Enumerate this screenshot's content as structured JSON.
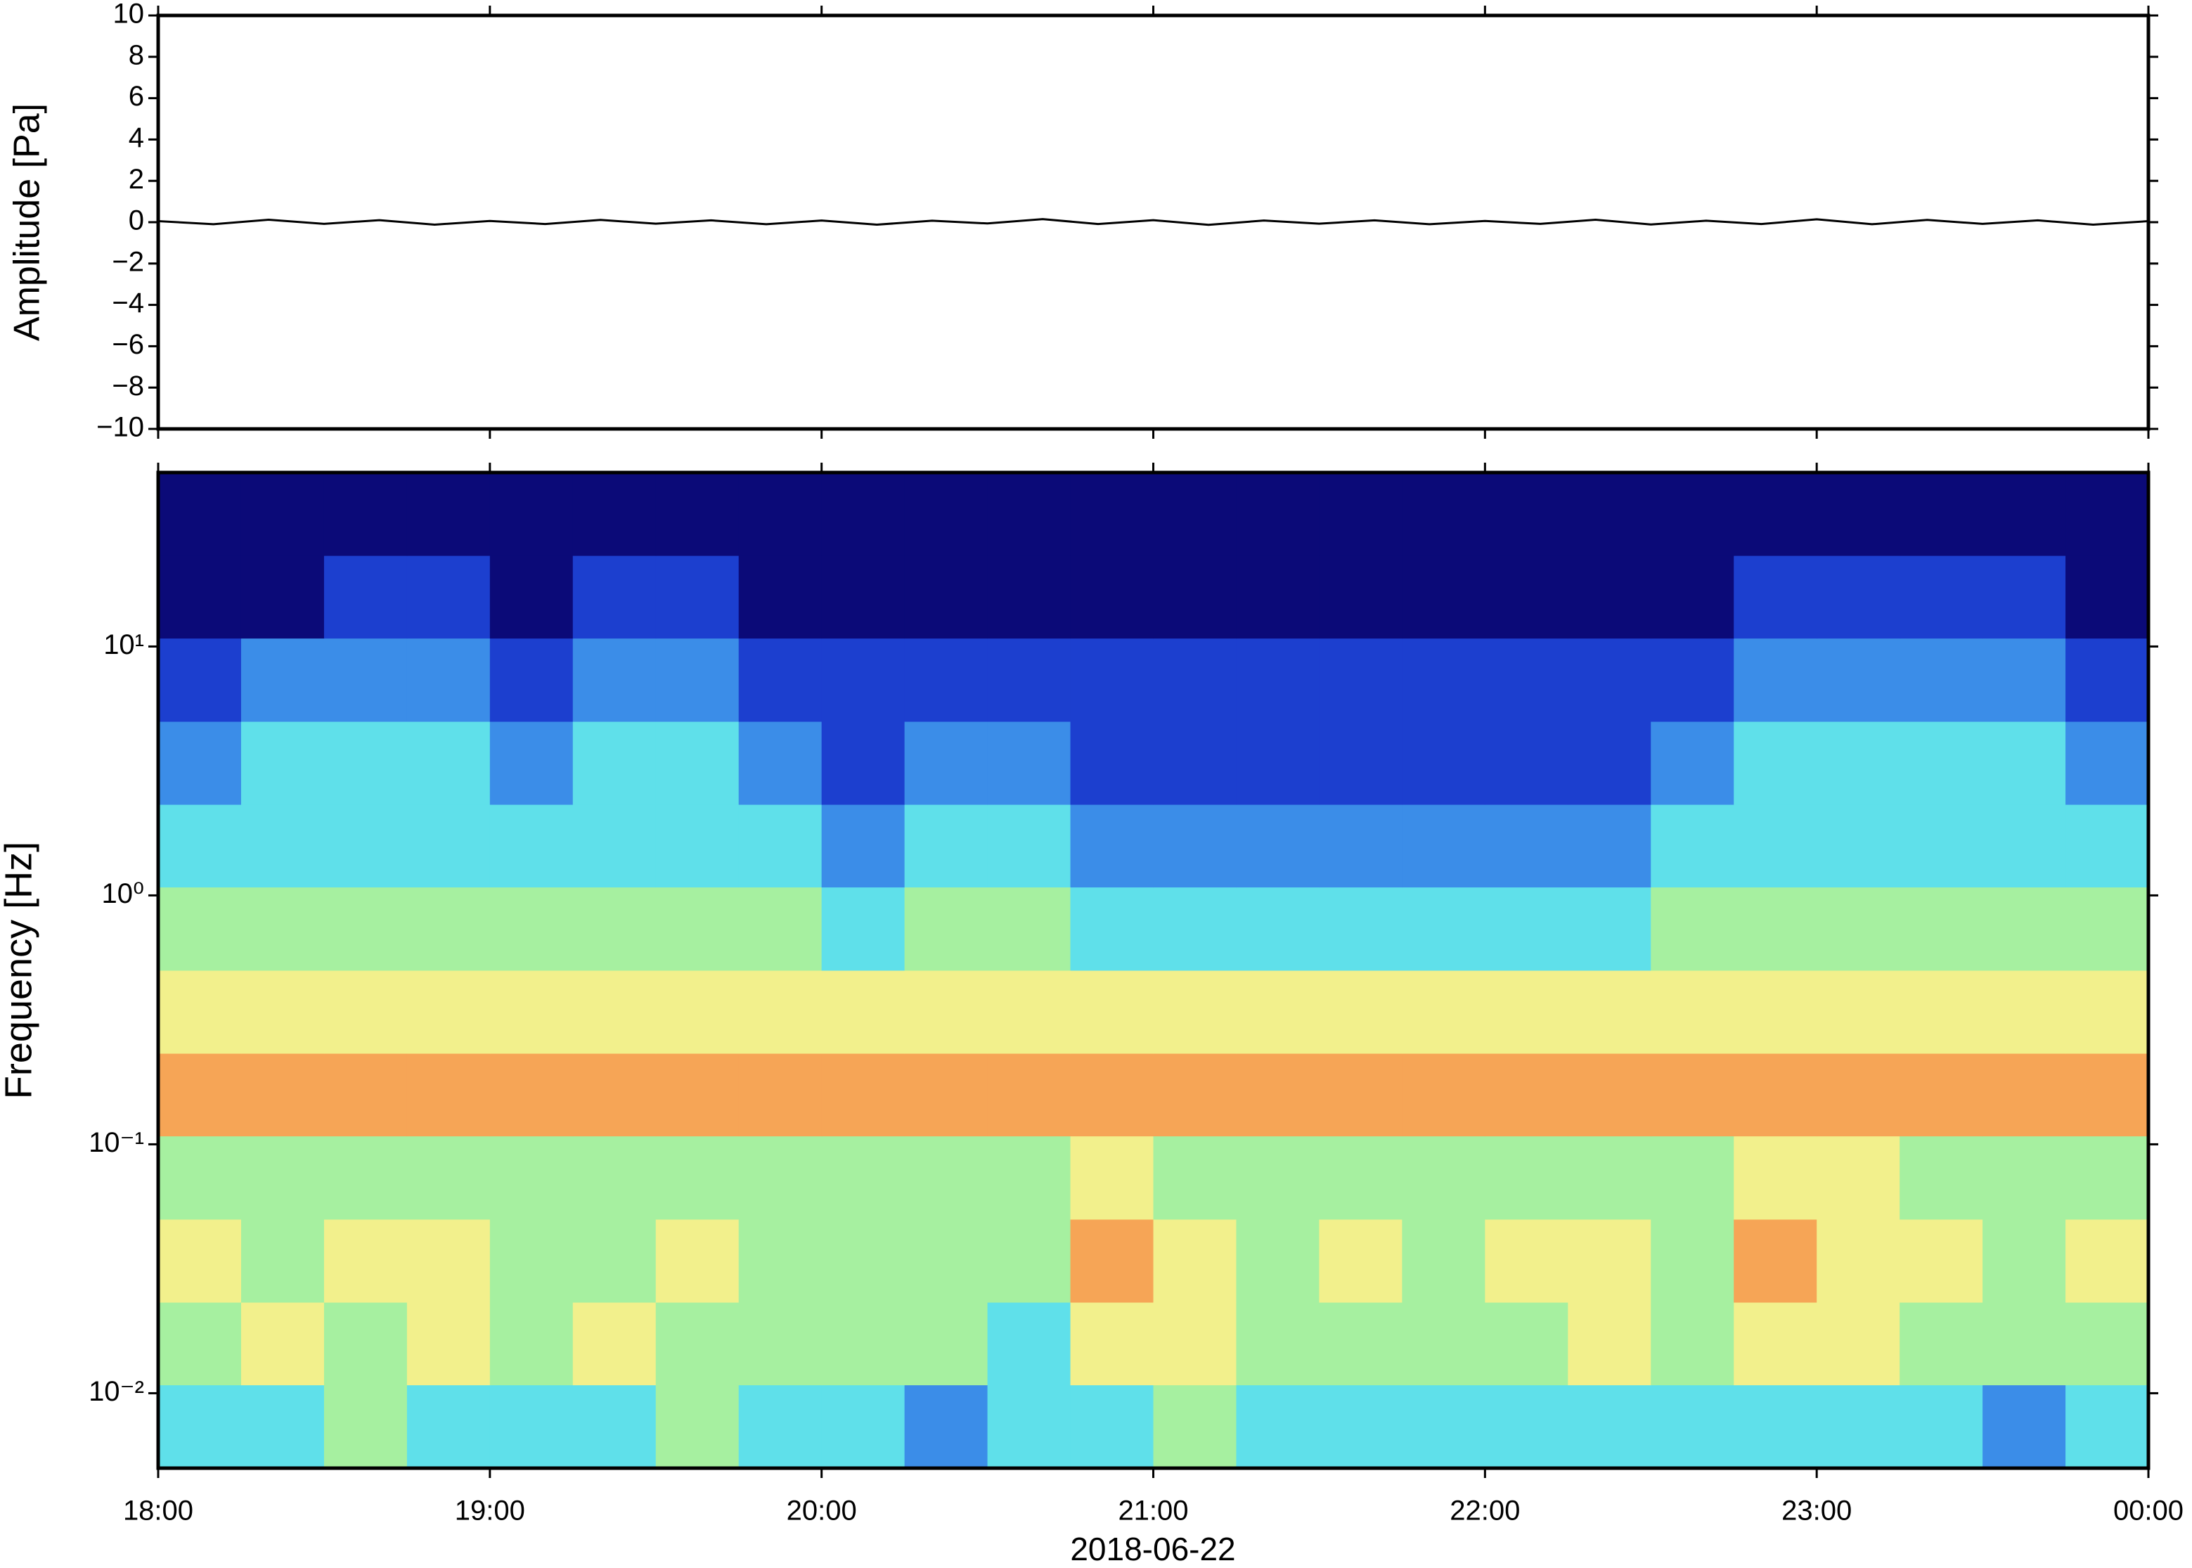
{
  "chart_data": [
    {
      "type": "line",
      "ylabel": "Amplitude [Pa]",
      "color": "#000000",
      "x": [
        "18:00",
        "18:10",
        "18:20",
        "18:30",
        "18:40",
        "18:50",
        "19:00",
        "19:10",
        "19:20",
        "19:30",
        "19:40",
        "19:50",
        "20:00",
        "20:10",
        "20:20",
        "20:30",
        "20:40",
        "20:50",
        "21:00",
        "21:10",
        "21:20",
        "21:30",
        "21:40",
        "21:50",
        "22:00",
        "22:10",
        "22:20",
        "22:30",
        "22:40",
        "22:50",
        "23:00",
        "23:10",
        "23:20",
        "23:30",
        "23:40",
        "23:50",
        "00:00"
      ],
      "values": [
        0.05,
        -0.1,
        0.12,
        -0.08,
        0.1,
        -0.12,
        0.06,
        -0.09,
        0.11,
        -0.07,
        0.09,
        -0.1,
        0.08,
        -0.12,
        0.07,
        -0.06,
        0.15,
        -0.09,
        0.1,
        -0.13,
        0.08,
        -0.07,
        0.09,
        -0.1,
        0.06,
        -0.08,
        0.12,
        -0.11,
        0.07,
        -0.09,
        0.14,
        -0.1,
        0.11,
        -0.08,
        0.09,
        -0.12,
        0.05
      ],
      "xlim": [
        "18:00",
        "00:00"
      ],
      "ylim": [
        -10,
        10
      ],
      "yticks": [
        {
          "value": -10,
          "label": "−10"
        },
        {
          "value": -8,
          "label": "−8"
        },
        {
          "value": -6,
          "label": "−6"
        },
        {
          "value": -4,
          "label": "−4"
        },
        {
          "value": -2,
          "label": "−2"
        },
        0,
        2,
        4,
        6,
        8,
        10
      ]
    },
    {
      "type": "spectrogram",
      "ylabel": "Frequency [Hz]",
      "xlabel": "2018-06-22",
      "yscale": "log",
      "xlim": [
        "18:00",
        "00:00"
      ],
      "xticks": [
        "18:00",
        "19:00",
        "20:00",
        "21:00",
        "22:00",
        "23:00",
        "00:00"
      ],
      "ylim": [
        0.005,
        50
      ],
      "yticks": [
        {
          "value": 0.01,
          "label": "10⁻²"
        },
        {
          "value": 0.1,
          "label": "10⁻¹"
        },
        {
          "value": 1,
          "label": "10⁰"
        },
        {
          "value": 10,
          "label": "10¹"
        }
      ],
      "colormap": [
        "#0b0a78",
        "#1c3fcf",
        "#3b8de8",
        "#5fe0ea",
        "#a6f0a0",
        "#f2f08c",
        "#f6a556"
      ],
      "time_edges": [
        "18:00",
        "18:15",
        "18:30",
        "18:45",
        "19:00",
        "19:15",
        "19:30",
        "19:45",
        "20:00",
        "20:15",
        "20:30",
        "20:45",
        "21:00",
        "21:15",
        "21:30",
        "21:45",
        "22:00",
        "22:15",
        "22:30",
        "22:45",
        "23:00",
        "23:15",
        "23:30",
        "23:45",
        "00:00"
      ],
      "freq_edges": [
        0.005,
        0.0108,
        0.0232,
        0.05,
        0.108,
        0.232,
        0.5,
        1.08,
        2.32,
        5,
        10.8,
        23.2,
        50
      ],
      "z": [
        [
          3,
          3,
          4,
          3,
          3,
          3,
          4,
          3,
          3,
          2,
          3,
          3,
          4,
          3,
          3,
          3,
          3,
          3,
          3,
          3,
          3,
          3,
          2,
          3
        ],
        [
          4,
          5,
          4,
          5,
          4,
          5,
          4,
          4,
          4,
          4,
          3,
          5,
          5,
          4,
          4,
          4,
          4,
          5,
          4,
          5,
          5,
          4,
          4,
          4
        ],
        [
          5,
          4,
          5,
          5,
          4,
          4,
          5,
          4,
          4,
          4,
          4,
          6,
          5,
          4,
          5,
          4,
          5,
          5,
          4,
          6,
          5,
          5,
          4,
          5
        ],
        [
          4,
          4,
          4,
          4,
          4,
          4,
          4,
          4,
          4,
          4,
          4,
          5,
          4,
          4,
          4,
          4,
          4,
          4,
          4,
          5,
          5,
          4,
          4,
          4
        ],
        [
          6,
          6,
          6,
          6,
          6,
          6,
          6,
          6,
          6,
          6,
          6,
          6,
          6,
          6,
          6,
          6,
          6,
          6,
          6,
          6,
          6,
          6,
          6,
          6
        ],
        [
          5,
          5,
          5,
          5,
          5,
          5,
          5,
          5,
          5,
          5,
          5,
          5,
          5,
          5,
          5,
          5,
          5,
          5,
          5,
          5,
          5,
          5,
          5,
          5
        ],
        [
          4,
          4,
          4,
          4,
          4,
          4,
          4,
          4,
          3,
          4,
          4,
          3,
          3,
          3,
          3,
          3,
          3,
          3,
          4,
          4,
          4,
          4,
          4,
          4
        ],
        [
          3,
          3,
          3,
          3,
          3,
          3,
          3,
          3,
          2,
          3,
          3,
          2,
          2,
          2,
          2,
          2,
          2,
          2,
          3,
          3,
          3,
          3,
          3,
          3
        ],
        [
          2,
          3,
          3,
          3,
          2,
          3,
          3,
          2,
          1,
          2,
          2,
          1,
          1,
          1,
          1,
          1,
          1,
          1,
          2,
          3,
          3,
          3,
          3,
          2
        ],
        [
          1,
          2,
          2,
          2,
          1,
          2,
          2,
          1,
          1,
          1,
          1,
          1,
          1,
          1,
          1,
          1,
          1,
          1,
          1,
          2,
          2,
          2,
          2,
          1
        ],
        [
          0,
          0,
          1,
          1,
          0,
          1,
          1,
          0,
          0,
          0,
          0,
          0,
          0,
          0,
          0,
          0,
          0,
          0,
          0,
          1,
          1,
          1,
          1,
          0
        ],
        [
          0,
          0,
          0,
          0,
          0,
          0,
          0,
          0,
          0,
          0,
          0,
          0,
          0,
          0,
          0,
          0,
          0,
          0,
          0,
          0,
          0,
          0,
          0,
          0
        ]
      ]
    }
  ]
}
